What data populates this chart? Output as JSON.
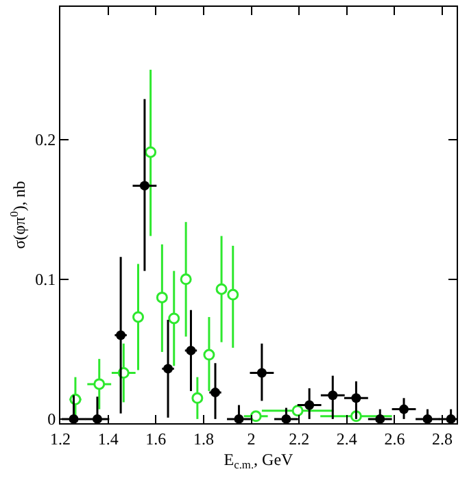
{
  "chart_data": {
    "type": "scatter",
    "xlabel": "E$_{c.m.}$, GeV",
    "ylabel": "σ(φπ$^{0}$), nb",
    "xlim": [
      1.2,
      2.86
    ],
    "xticks": [
      1.2,
      1.4,
      1.6,
      1.8,
      2,
      2.2,
      2.4,
      2.6,
      2.8
    ],
    "ylim": [
      -0.003,
      0.295
    ],
    "yticks": [
      0,
      0.1,
      0.2
    ],
    "grid": false,
    "marker": "circle",
    "series": [
      {
        "color": "#000000",
        "x": [
          1.256,
          1.355,
          1.453,
          1.553,
          1.651,
          1.747,
          1.849,
          1.948,
          2.044,
          2.146,
          2.243,
          2.341,
          2.439,
          2.539,
          2.639,
          2.738,
          2.836
        ],
        "values": [
          0,
          0,
          0.06,
          0.167,
          0.036,
          0.049,
          0.019,
          0,
          0.033,
          0,
          0.01,
          0.017,
          0.015,
          0,
          0.007,
          0,
          0
        ],
        "errors": [
          [
            0,
            0.017
          ],
          [
            0,
            0.016
          ],
          [
            0.004,
            0.116
          ],
          [
            0.106,
            0.229
          ],
          [
            0.001,
            0.071
          ],
          [
            0.02,
            0.078
          ],
          [
            0,
            0.04
          ],
          [
            0,
            0.01
          ],
          [
            0.013,
            0.054
          ],
          [
            0,
            0.008
          ],
          [
            0,
            0.022
          ],
          [
            0,
            0.031
          ],
          [
            0,
            0.027
          ],
          [
            0,
            0.007
          ],
          [
            0,
            0.015
          ],
          [
            0,
            0.007
          ],
          [
            0,
            0.007
          ]
        ],
        "xerrors": [
          0.05,
          0.05,
          0.025,
          0.05,
          0.025,
          0.025,
          0.025,
          0.05,
          0.05,
          0.05,
          0.05,
          0.05,
          0.05,
          0.05,
          0.05,
          0.05,
          0.05
        ]
      },
      {
        "color": "#2ee82e",
        "x": [
          1.263,
          1.363,
          1.465,
          1.526,
          1.578,
          1.626,
          1.676,
          1.726,
          1.774,
          1.823,
          1.875,
          1.923,
          2.019,
          2.194,
          2.439
        ],
        "values": [
          0.014,
          0.025,
          0.033,
          0.073,
          0.191,
          0.087,
          0.072,
          0.1,
          0.015,
          0.046,
          0.093,
          0.089,
          0.002,
          0.006,
          0.002
        ],
        "errors": [
          [
            0,
            0.03
          ],
          [
            0.007,
            0.043
          ],
          [
            0.012,
            0.054
          ],
          [
            0.035,
            0.111
          ],
          [
            0.131,
            0.25
          ],
          [
            0.048,
            0.125
          ],
          [
            0.038,
            0.106
          ],
          [
            0.059,
            0.141
          ],
          [
            0,
            0.03
          ],
          [
            0.02,
            0.073
          ],
          [
            0.055,
            0.131
          ],
          [
            0.051,
            0.124
          ],
          null,
          null,
          null
        ],
        "xerrors": [
          0.025,
          0.05,
          0.05,
          null,
          null,
          null,
          null,
          null,
          null,
          null,
          null,
          null,
          0.05,
          0.15,
          0.15
        ]
      }
    ]
  }
}
